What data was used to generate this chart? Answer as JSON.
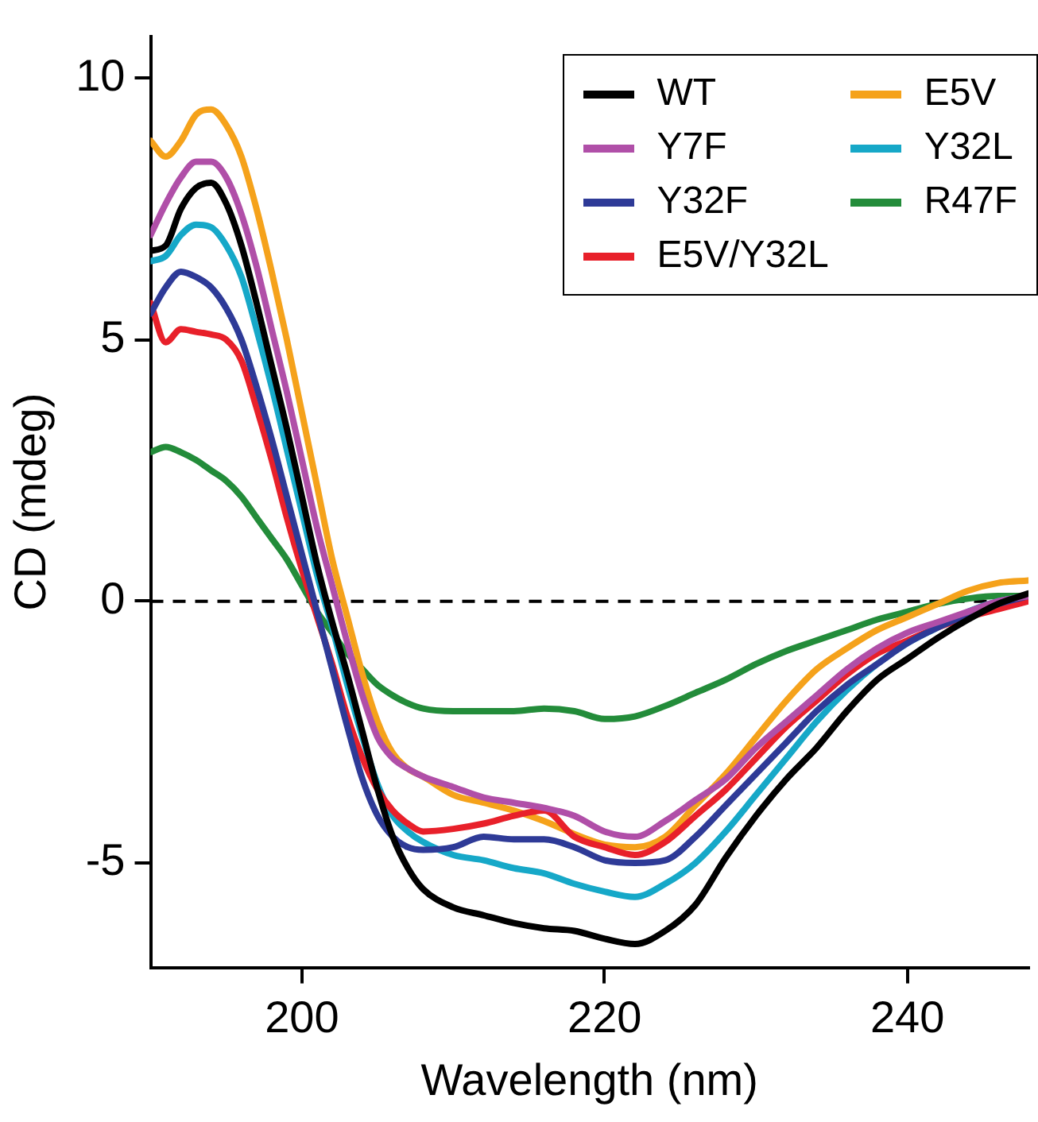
{
  "chart_data": {
    "type": "line",
    "xlabel": "Wavelength (nm)",
    "ylabel": "CD (mdeg)",
    "x": [
      190,
      191,
      192,
      193,
      194,
      195,
      196,
      197,
      198,
      199,
      200,
      201,
      202,
      203,
      204,
      205,
      206,
      207,
      208,
      210,
      212,
      214,
      216,
      218,
      220,
      222,
      224,
      226,
      228,
      230,
      232,
      234,
      236,
      238,
      240,
      242,
      244,
      246,
      248
    ],
    "xlim": [
      190,
      248
    ],
    "xticks": [
      200,
      220,
      240
    ],
    "ylim": [
      -7,
      10.8
    ],
    "yticks": [
      -5,
      0,
      5,
      10
    ],
    "grid": false,
    "legend": "top right",
    "marker": "none",
    "line_style": "solid",
    "ref_lines": [
      {
        "axis": "y",
        "value": 0,
        "color": "#000000",
        "line_style": "dashed"
      }
    ],
    "series": [
      {
        "name": "WT",
        "color": "#000000",
        "values": [
          6.7,
          6.8,
          7.5,
          7.9,
          8.0,
          7.6,
          6.8,
          5.7,
          4.5,
          3.3,
          2.0,
          0.7,
          -0.4,
          -1.4,
          -2.5,
          -3.6,
          -4.5,
          -5.1,
          -5.5,
          -5.85,
          -6.0,
          -6.15,
          -6.25,
          -6.3,
          -6.45,
          -6.55,
          -6.3,
          -5.8,
          -4.9,
          -4.1,
          -3.4,
          -2.8,
          -2.1,
          -1.5,
          -1.1,
          -0.7,
          -0.35,
          -0.05,
          0.15
        ]
      },
      {
        "name": "Y7F",
        "color": "#b04fa8",
        "values": [
          7.0,
          7.6,
          8.1,
          8.4,
          8.4,
          8.1,
          7.4,
          6.4,
          5.2,
          4.0,
          2.7,
          1.4,
          0.3,
          -0.8,
          -1.8,
          -2.6,
          -3.0,
          -3.2,
          -3.35,
          -3.55,
          -3.75,
          -3.85,
          -3.95,
          -4.1,
          -4.4,
          -4.5,
          -4.2,
          -3.8,
          -3.4,
          -2.8,
          -2.3,
          -1.8,
          -1.3,
          -0.9,
          -0.6,
          -0.4,
          -0.2,
          0.0,
          0.1
        ]
      },
      {
        "name": "Y32F",
        "color": "#2e3a97",
        "values": [
          5.5,
          6.0,
          6.3,
          6.2,
          6.0,
          5.6,
          5.0,
          4.1,
          3.1,
          2.0,
          0.9,
          -0.2,
          -1.3,
          -2.4,
          -3.4,
          -4.1,
          -4.5,
          -4.7,
          -4.75,
          -4.7,
          -4.5,
          -4.55,
          -4.55,
          -4.7,
          -4.95,
          -5.0,
          -4.95,
          -4.5,
          -3.9,
          -3.3,
          -2.7,
          -2.1,
          -1.6,
          -1.2,
          -0.8,
          -0.5,
          -0.25,
          -0.05,
          0.1
        ]
      },
      {
        "name": "E5V/Y32L",
        "color": "#e8202a",
        "values": [
          5.7,
          4.95,
          5.2,
          5.15,
          5.1,
          5.0,
          4.6,
          3.7,
          2.7,
          1.6,
          0.6,
          -0.3,
          -1.2,
          -2.2,
          -3.0,
          -3.6,
          -4.0,
          -4.25,
          -4.4,
          -4.35,
          -4.25,
          -4.1,
          -4.0,
          -4.5,
          -4.7,
          -4.85,
          -4.6,
          -4.1,
          -3.6,
          -3.0,
          -2.4,
          -1.9,
          -1.4,
          -1.0,
          -0.75,
          -0.5,
          -0.3,
          -0.15,
          0.0
        ]
      },
      {
        "name": "E5V",
        "color": "#f5a21b",
        "values": [
          8.8,
          8.5,
          8.8,
          9.3,
          9.4,
          9.1,
          8.5,
          7.5,
          6.3,
          5.0,
          3.6,
          2.2,
          0.8,
          -0.3,
          -1.4,
          -2.3,
          -2.9,
          -3.2,
          -3.35,
          -3.7,
          -3.85,
          -4.0,
          -4.2,
          -4.45,
          -4.65,
          -4.7,
          -4.5,
          -3.9,
          -3.3,
          -2.6,
          -1.9,
          -1.3,
          -0.9,
          -0.55,
          -0.3,
          -0.05,
          0.2,
          0.35,
          0.4
        ]
      },
      {
        "name": "Y32L",
        "color": "#16a8c8",
        "values": [
          6.5,
          6.6,
          7.0,
          7.2,
          7.15,
          6.8,
          6.2,
          5.2,
          4.1,
          2.9,
          1.7,
          0.5,
          -0.5,
          -1.6,
          -2.6,
          -3.5,
          -4.1,
          -4.4,
          -4.6,
          -4.85,
          -4.95,
          -5.1,
          -5.2,
          -5.4,
          -5.55,
          -5.65,
          -5.4,
          -5.0,
          -4.4,
          -3.7,
          -3.0,
          -2.3,
          -1.7,
          -1.2,
          -0.8,
          -0.5,
          -0.2,
          0.0,
          0.1
        ]
      },
      {
        "name": "R47F",
        "color": "#238c3a",
        "values": [
          2.85,
          2.95,
          2.85,
          2.7,
          2.5,
          2.3,
          2.0,
          1.6,
          1.2,
          0.8,
          0.3,
          -0.2,
          -0.6,
          -1.0,
          -1.3,
          -1.6,
          -1.8,
          -1.95,
          -2.05,
          -2.1,
          -2.1,
          -2.1,
          -2.05,
          -2.1,
          -2.25,
          -2.2,
          -2.0,
          -1.75,
          -1.5,
          -1.2,
          -0.95,
          -0.75,
          -0.55,
          -0.35,
          -0.2,
          -0.05,
          0.05,
          0.1,
          0.1
        ]
      }
    ]
  }
}
